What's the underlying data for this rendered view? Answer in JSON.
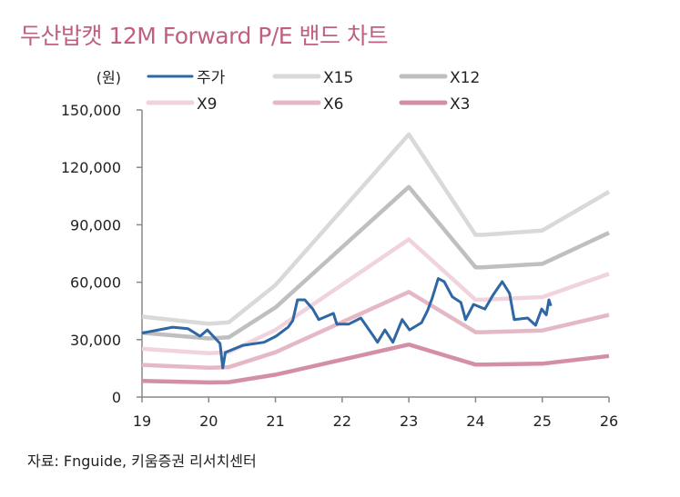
{
  "chart_data": {
    "type": "line",
    "title": "두산밥캣  12M Forward P/E 밴드 차트",
    "ylabel": "(원)",
    "source": "자료: Fnguide, 키움증권 리서치센터",
    "xlim": [
      19,
      26
    ],
    "ylim": [
      0,
      150000
    ],
    "x_ticks": [
      "19",
      "20",
      "21",
      "22",
      "23",
      "24",
      "25",
      "26"
    ],
    "y_ticks": [
      "0",
      "30,000",
      "60,000",
      "90,000",
      "120,000",
      "150,000"
    ],
    "grid": false,
    "legend_position": "top",
    "bands_x": [
      19,
      20,
      20.3,
      21,
      23,
      24,
      24.1,
      25,
      26
    ],
    "series": [
      {
        "name": "주가",
        "color": "#2e67a4",
        "x": [
          19.0,
          19.46,
          19.69,
          19.87,
          19.98,
          20.17,
          20.21,
          20.25,
          20.51,
          20.83,
          21.01,
          21.19,
          21.26,
          21.33,
          21.44,
          21.56,
          21.65,
          21.87,
          21.92,
          22.1,
          22.28,
          22.47,
          22.53,
          22.64,
          22.76,
          22.9,
          23.01,
          23.19,
          23.28,
          23.35,
          23.44,
          23.53,
          23.65,
          23.78,
          23.85,
          23.97,
          24.14,
          24.26,
          24.4,
          24.51,
          24.58,
          24.78,
          24.9,
          24.99,
          25.06,
          25.1,
          25.13
        ],
        "values": [
          33400,
          36500,
          35700,
          31800,
          35100,
          28000,
          15200,
          23300,
          27000,
          28600,
          31800,
          36500,
          39900,
          50800,
          50800,
          46000,
          40500,
          43700,
          38100,
          38100,
          41300,
          31800,
          28600,
          35100,
          28600,
          40500,
          35100,
          38900,
          45200,
          51700,
          61900,
          60300,
          52400,
          49400,
          40500,
          48400,
          46000,
          53200,
          60300,
          54100,
          40500,
          41300,
          37500,
          46000,
          42900,
          50800,
          47600
        ]
      },
      {
        "name": "X15",
        "color": "#d9d9d9",
        "values": [
          42000,
          38250,
          39000,
          58500,
          137250,
          84750,
          84750,
          87000,
          107250
        ]
      },
      {
        "name": "X12",
        "color": "#bfbfbf",
        "values": [
          33600,
          30600,
          31200,
          46800,
          109800,
          67800,
          67800,
          69600,
          85800
        ]
      },
      {
        "name": "X9",
        "color": "#f0d3dc",
        "values": [
          25200,
          22950,
          23400,
          35100,
          82350,
          50850,
          50850,
          52200,
          64350
        ]
      },
      {
        "name": "X6",
        "color": "#e5b8c6",
        "values": [
          16800,
          15300,
          15600,
          23400,
          54900,
          33900,
          33900,
          34800,
          42900
        ]
      },
      {
        "name": "X3",
        "color": "#d48fa6",
        "values": [
          8400,
          7650,
          7800,
          11700,
          27450,
          16950,
          16950,
          17400,
          21450
        ]
      }
    ]
  }
}
